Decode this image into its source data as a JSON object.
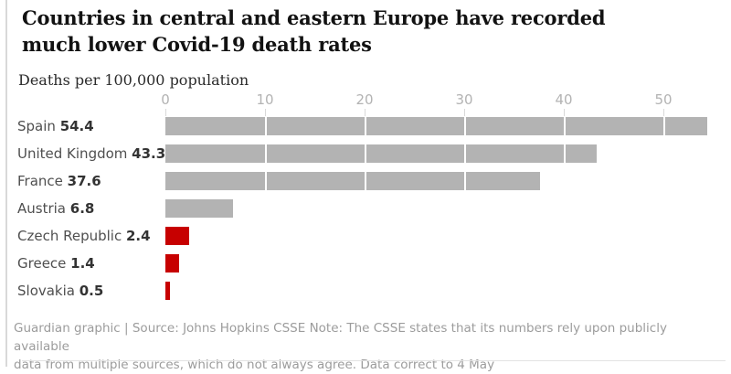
{
  "header": {
    "title": "Countries in central and eastern Europe have recorded much lower Covid-19 death rates",
    "subtitle": "Deaths per 100,000 population"
  },
  "chart_data": {
    "type": "bar",
    "orientation": "horizontal",
    "title": "Countries in central and eastern Europe have recorded much lower Covid-19 death rates",
    "unit_label": "Deaths per 100,000 population",
    "categories": [
      "Spain",
      "United Kingdom",
      "France",
      "Austria",
      "Czech Republic",
      "Greece",
      "Slovakia"
    ],
    "values": [
      54.4,
      43.3,
      37.6,
      6.8,
      2.4,
      1.4,
      0.5
    ],
    "value_labels": [
      "54.4",
      "43.3",
      "37.6",
      "6.8",
      "2.4",
      "1.4",
      "0.5"
    ],
    "bar_color_keys": [
      "gray",
      "gray",
      "gray",
      "gray",
      "red",
      "red",
      "red"
    ],
    "x_ticks": [
      0,
      10,
      20,
      30,
      40,
      50
    ],
    "xlim": [
      0,
      55.5
    ],
    "grid": "white vertical gridlines drawn over bars",
    "legend": "none",
    "value_label_position": "inline after category name, bold"
  },
  "colors": {
    "bar_gray": "#b3b3b3",
    "bar_red": "#c70000",
    "axis_label": "#b3b3b3",
    "title_text": "#121212",
    "label_text": "#4f4f4f",
    "value_text": "#333333",
    "footer_text": "#9c9c9c",
    "rule": "#d9d9d9"
  },
  "footer": {
    "line1": "Guardian graphic | Source: Johns Hopkins CSSE Note: The CSSE states that its numbers rely upon publicly available",
    "line2": "data from multiple sources, which do not always agree. Data correct to 4 May"
  }
}
